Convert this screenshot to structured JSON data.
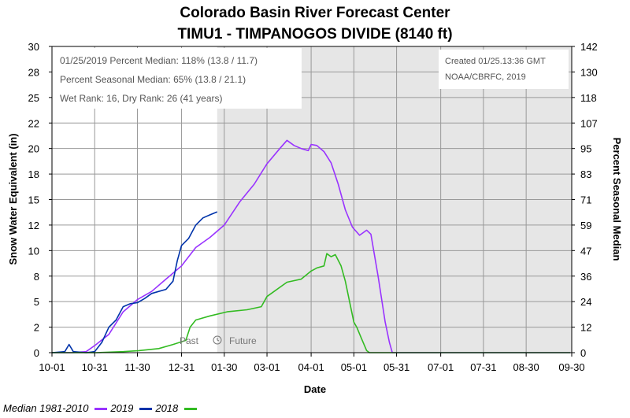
{
  "header": {
    "title": "Colorado Basin River Forecast Center",
    "subtitle": "TIMU1 - TIMPANOGOS DIVIDE (8140 ft)"
  },
  "info_box": {
    "line1": "01/25/2019 Percent Median: 118% (13.8 / 11.7)",
    "line2": "Percent Seasonal Median: 65% (13.8 / 21.1)",
    "line3": "Wet Rank: 16, Dry Rank: 26  (41 years)"
  },
  "credit_box": {
    "line1": "Created 01/25.13:36 GMT",
    "line2": "NOAA/CBRFC, 2019"
  },
  "markers": {
    "past": "Past",
    "future": "Future"
  },
  "legend": {
    "median_label": "Median 1981-2010",
    "y2019_label": "2019",
    "y2018_label": "2018"
  },
  "chart_data": {
    "type": "line",
    "xlabel": "Date",
    "ylabel": "Snow Water Equivalent (in)",
    "y2label": "Percent Seasonal Median",
    "ylim": [
      0,
      30
    ],
    "y2lim": [
      0,
      142
    ],
    "yticks": [
      "0",
      "2",
      "5",
      "8",
      "10",
      "12",
      "15",
      "18",
      "20",
      "22",
      "25",
      "28",
      "30"
    ],
    "y2ticks": [
      "0",
      "12",
      "24",
      "36",
      "47",
      "59",
      "71",
      "83",
      "95",
      "107",
      "118",
      "130",
      "142"
    ],
    "xticks": [
      "10-01",
      "10-31",
      "11-30",
      "12-31",
      "01-30",
      "03-01",
      "04-01",
      "05-01",
      "05-31",
      "07-01",
      "07-31",
      "08-30",
      "09-30"
    ],
    "today_marker": "01-25",
    "colors": {
      "median": "#9933ff",
      "y2019": "#0033aa",
      "y2018": "#33bb22"
    },
    "series": [
      {
        "name": "Median 1981-2010",
        "color": "#9933ff",
        "points": [
          [
            "10-01",
            0
          ],
          [
            "10-15",
            0
          ],
          [
            "10-25",
            0.1
          ],
          [
            "11-01",
            0.8
          ],
          [
            "11-10",
            1.8
          ],
          [
            "11-20",
            4.0
          ],
          [
            "11-30",
            5.2
          ],
          [
            "12-10",
            6.0
          ],
          [
            "12-20",
            7.2
          ],
          [
            "12-31",
            8.5
          ],
          [
            "01-10",
            10.3
          ],
          [
            "01-20",
            11.3
          ],
          [
            "01-30",
            12.5
          ],
          [
            "02-10",
            14.8
          ],
          [
            "02-20",
            16.5
          ],
          [
            "03-01",
            18.5
          ],
          [
            "03-10",
            20.0
          ],
          [
            "03-15",
            20.8
          ],
          [
            "03-20",
            20.3
          ],
          [
            "03-25",
            20.0
          ],
          [
            "03-30",
            19.8
          ],
          [
            "04-01",
            20.4
          ],
          [
            "04-05",
            20.3
          ],
          [
            "04-10",
            19.7
          ],
          [
            "04-15",
            18.6
          ],
          [
            "04-20",
            16.5
          ],
          [
            "04-25",
            14.0
          ],
          [
            "04-30",
            12.3
          ],
          [
            "05-05",
            11.5
          ],
          [
            "05-10",
            12.0
          ],
          [
            "05-13",
            11.6
          ],
          [
            "05-18",
            7.5
          ],
          [
            "05-23",
            3.0
          ],
          [
            "05-26",
            1.0
          ],
          [
            "05-28",
            0
          ],
          [
            "09-30",
            0
          ]
        ]
      },
      {
        "name": "2019",
        "color": "#0033aa",
        "points": [
          [
            "10-01",
            0
          ],
          [
            "10-10",
            0.1
          ],
          [
            "10-13",
            0.8
          ],
          [
            "10-16",
            0.1
          ],
          [
            "10-25",
            0
          ],
          [
            "10-31",
            0.1
          ],
          [
            "11-05",
            1.0
          ],
          [
            "11-10",
            2.5
          ],
          [
            "11-15",
            3.2
          ],
          [
            "11-20",
            4.5
          ],
          [
            "11-25",
            4.8
          ],
          [
            "11-30",
            4.9
          ],
          [
            "12-05",
            5.3
          ],
          [
            "12-10",
            5.8
          ],
          [
            "12-15",
            6.0
          ],
          [
            "12-20",
            6.2
          ],
          [
            "12-25",
            7.0
          ],
          [
            "12-28",
            9.0
          ],
          [
            "12-31",
            10.5
          ],
          [
            "01-05",
            11.2
          ],
          [
            "01-10",
            12.5
          ],
          [
            "01-15",
            13.2
          ],
          [
            "01-20",
            13.5
          ],
          [
            "01-25",
            13.8
          ]
        ]
      },
      {
        "name": "2018",
        "color": "#33bb22",
        "points": [
          [
            "10-01",
            0
          ],
          [
            "11-01",
            0
          ],
          [
            "11-20",
            0.1
          ],
          [
            "12-01",
            0.2
          ],
          [
            "12-15",
            0.4
          ],
          [
            "12-25",
            0.8
          ],
          [
            "01-03",
            1.2
          ],
          [
            "01-06",
            2.5
          ],
          [
            "01-10",
            3.2
          ],
          [
            "01-20",
            3.6
          ],
          [
            "02-01",
            4.0
          ],
          [
            "02-15",
            4.2
          ],
          [
            "02-25",
            4.5
          ],
          [
            "03-01",
            5.5
          ],
          [
            "03-15",
            6.9
          ],
          [
            "03-25",
            7.2
          ],
          [
            "04-01",
            8.0
          ],
          [
            "04-05",
            8.3
          ],
          [
            "04-10",
            8.5
          ],
          [
            "04-12",
            9.7
          ],
          [
            "04-15",
            9.4
          ],
          [
            "04-18",
            9.6
          ],
          [
            "04-22",
            8.5
          ],
          [
            "04-25",
            7.0
          ],
          [
            "04-28",
            5.0
          ],
          [
            "05-01",
            3.0
          ],
          [
            "05-03",
            2.5
          ],
          [
            "05-06",
            1.5
          ],
          [
            "05-10",
            0.2
          ],
          [
            "05-12",
            0
          ],
          [
            "09-30",
            0
          ]
        ]
      }
    ]
  }
}
